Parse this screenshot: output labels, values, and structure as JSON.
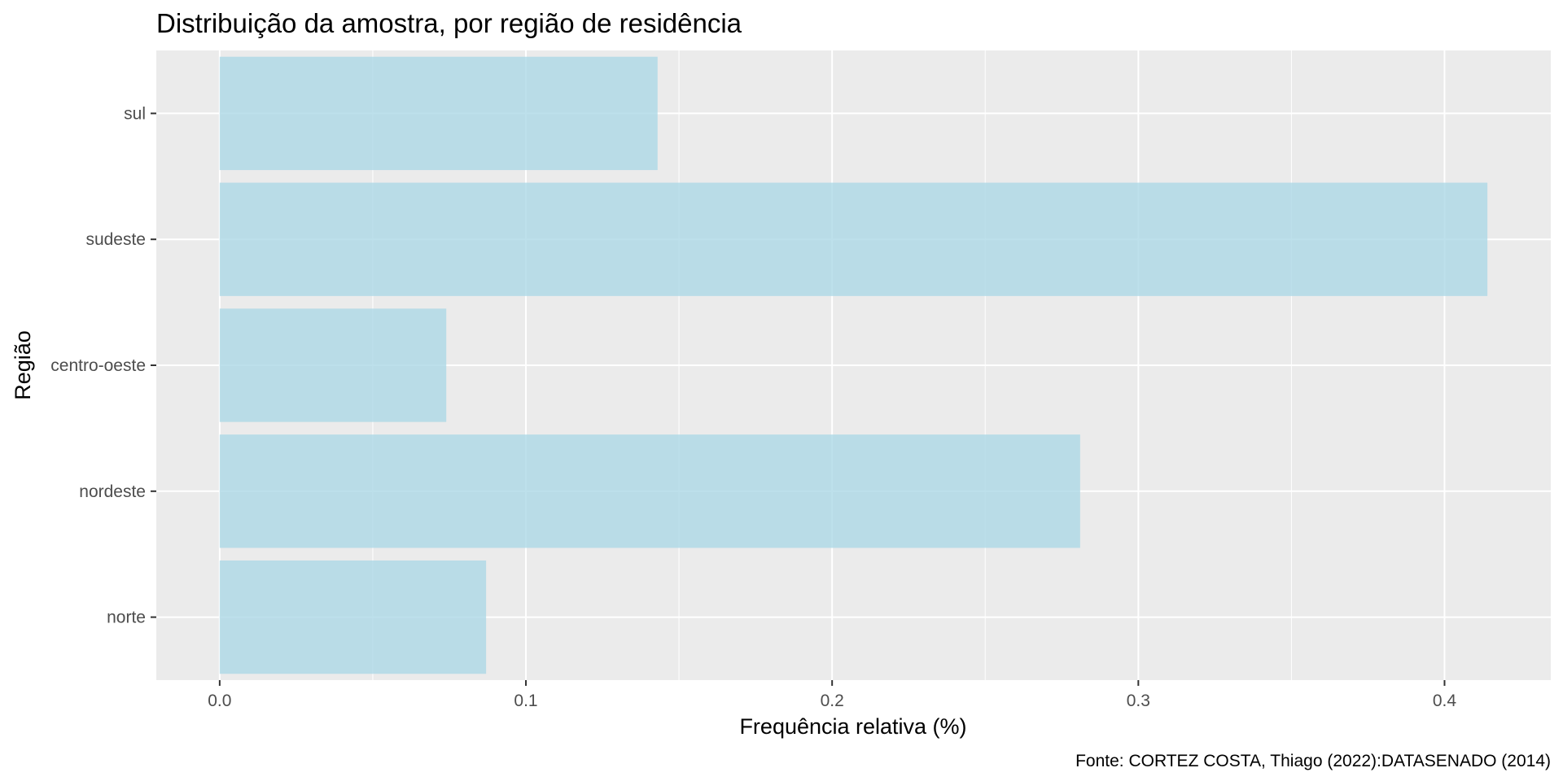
{
  "chart_data": {
    "type": "bar",
    "orientation": "horizontal",
    "title": "Distribuição da amostra, por região de residência",
    "xlabel": "Frequência relativa (%)",
    "ylabel": "Região",
    "caption": "Fonte: CORTEZ COSTA, Thiago (2022):DATASENADO (2014)",
    "categories": [
      "norte",
      "nordeste",
      "centro-oeste",
      "sudeste",
      "sul"
    ],
    "values": [
      0.087,
      0.281,
      0.074,
      0.414,
      0.143
    ],
    "xlim": [
      -0.0207,
      0.4347
    ],
    "xticks": [
      0.0,
      0.1,
      0.2,
      0.3,
      0.4
    ],
    "xtick_labels": [
      "0.0",
      "0.1",
      "0.2",
      "0.3",
      "0.4"
    ],
    "grid": true,
    "legend": "none",
    "colors": {
      "bar": "#add8e6",
      "panel": "#ebebeb",
      "grid": "#ffffff",
      "tick": "#333333",
      "tick_label": "#4d4d4d",
      "text": "#000000"
    }
  }
}
